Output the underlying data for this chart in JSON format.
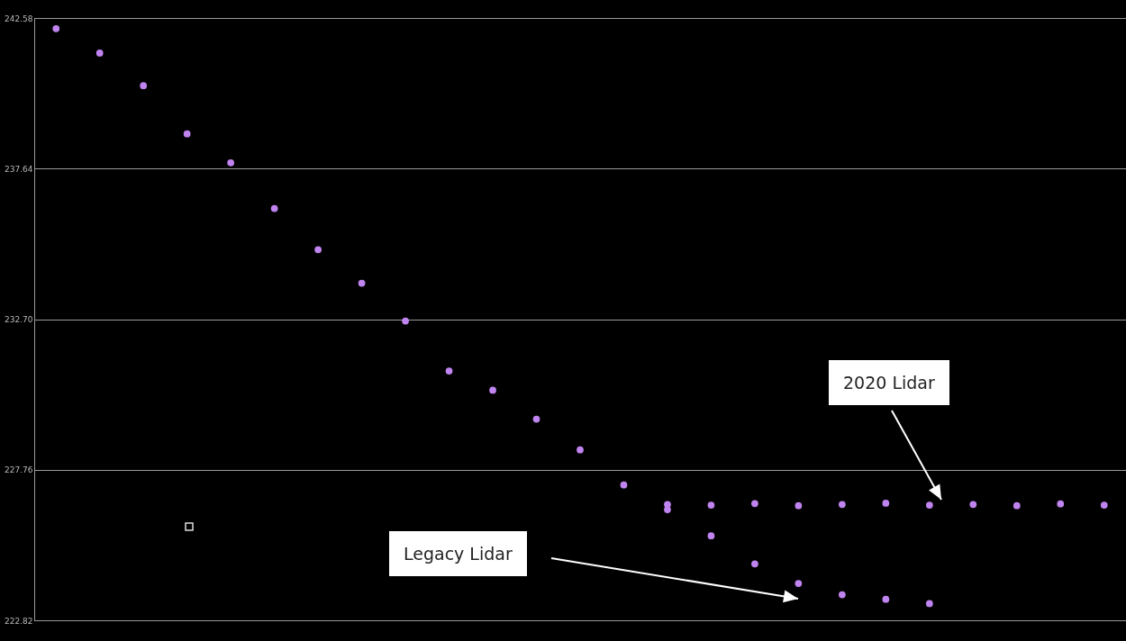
{
  "chart_data": {
    "type": "scatter",
    "categories": [
      null,
      null,
      null,
      null,
      null,
      null,
      null,
      null,
      null,
      null,
      null,
      null,
      null,
      null,
      null,
      null,
      null,
      null,
      null,
      null,
      null,
      null,
      null,
      null,
      null
    ],
    "series": [
      {
        "color": "#c084f0",
        "values": [
          242.23,
          241.43,
          240.36,
          238.78,
          237.83,
          236.33,
          234.98,
          233.88,
          232.64,
          231.0,
          230.37,
          229.42,
          228.41,
          227.26,
          226.45,
          225.59,
          224.67,
          224.03,
          223.66,
          223.51,
          223.37,
          null,
          null,
          null,
          null
        ]
      },
      {
        "color": "#c084f0",
        "values": [
          null,
          null,
          null,
          null,
          null,
          null,
          null,
          null,
          null,
          null,
          null,
          null,
          null,
          null,
          226.62,
          226.6,
          226.65,
          226.58,
          226.62,
          226.66,
          226.6,
          226.62,
          226.58,
          226.64,
          226.6
        ]
      }
    ],
    "ylim": [
      222.82,
      242.58
    ],
    "yticks": [
      242.58,
      237.64,
      {
        "value": 232.7,
        "label": "232.70"
      },
      227.76,
      222.82
    ],
    "grid": "y",
    "tick_labels": "y",
    "marker": "circle",
    "annotations": [
      "2020 Lidar",
      "Legacy Lidar"
    ]
  }
}
